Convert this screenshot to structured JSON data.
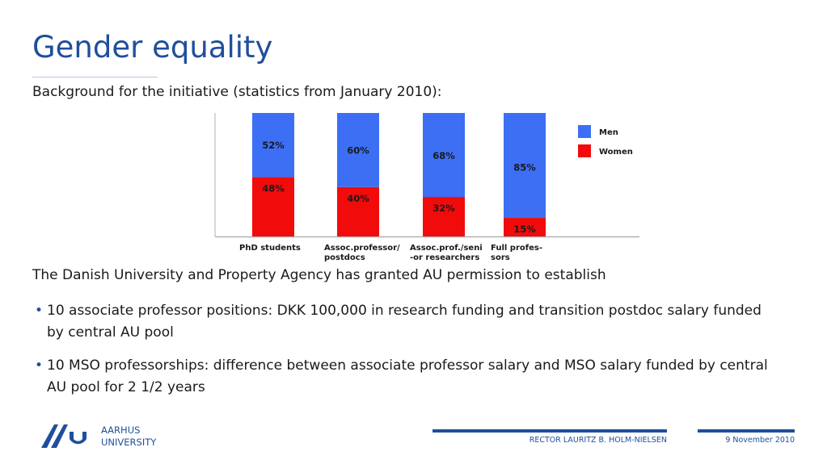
{
  "slide": {
    "title": "Gender equality",
    "subtitle": "Background for the initiative (statistics from January 2010):",
    "lead": "The Danish University and Property Agency has granted AU permission to establish",
    "bullets": [
      "10 associate professor positions: DKK 100,000 in research funding and transition postdoc salary funded by central AU pool",
      "10 MSO professorships: difference between associate professor salary and MSO salary funded by central AU pool for 2 1/2 years"
    ],
    "bullet_glyph": "•"
  },
  "footer": {
    "org_line1": "AARHUS",
    "org_line2": "UNIVERSITY",
    "presenter": "RECTOR LAURITZ B. HOLM-NIELSEN",
    "date": "9 November 2010"
  },
  "colors": {
    "brand": "#1f4e9c",
    "men": "#3d6ff5",
    "women": "#f20b0b"
  },
  "chart_data": {
    "type": "bar",
    "stacked": true,
    "categories": [
      [
        "PhD students"
      ],
      [
        "Assoc.professor/",
        "postdocs"
      ],
      [
        "Assoc.prof./seni",
        "-or researchers"
      ],
      [
        "Full profes-",
        "sors"
      ]
    ],
    "series": [
      {
        "name": "Women",
        "values": [
          48,
          40,
          32,
          15
        ],
        "labels": [
          "48%",
          "40%",
          "32%",
          "15%"
        ],
        "color": "#f20b0b"
      },
      {
        "name": "Men",
        "values": [
          52,
          60,
          68,
          85
        ],
        "labels": [
          "52%",
          "60%",
          "68%",
          "85%"
        ],
        "color": "#3d6ff5"
      }
    ],
    "ylim": [
      0,
      100
    ],
    "legend": "right",
    "grid": false
  }
}
